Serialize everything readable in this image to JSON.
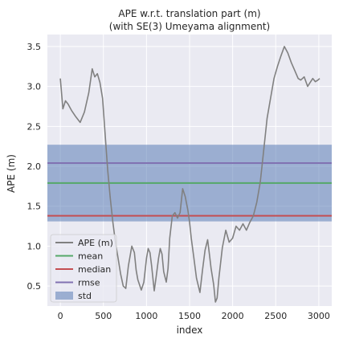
{
  "chart_data": {
    "type": "line",
    "title_line1": "APE w.r.t. translation part (m)",
    "title_line2": "(with SE(3) Umeyama alignment)",
    "xlabel": "index",
    "ylabel": "APE (m)",
    "xlim": [
      -150,
      3150
    ],
    "ylim": [
      0.25,
      3.65
    ],
    "xticks": [
      0,
      500,
      1000,
      1500,
      2000,
      2500,
      3000
    ],
    "xtick_labels": [
      "0",
      "500",
      "1000",
      "1500",
      "2000",
      "2500",
      "3000"
    ],
    "yticks": [
      0.5,
      1.0,
      1.5,
      2.0,
      2.5,
      3.0,
      3.5
    ],
    "ytick_labels": [
      "0.5",
      "1.0",
      "1.5",
      "2.0",
      "2.5",
      "3.0",
      "3.5"
    ],
    "grid": true,
    "legend_position": "lower-left",
    "stats": {
      "mean": 1.79,
      "median": 1.38,
      "rmse": 2.04,
      "std_low": 1.31,
      "std_high": 2.27
    },
    "series": [
      {
        "name": "APE (m)",
        "color": "#808080",
        "x": [
          0,
          30,
          60,
          90,
          130,
          180,
          230,
          280,
          330,
          370,
          400,
          430,
          460,
          490,
          520,
          550,
          580,
          610,
          640,
          670,
          700,
          730,
          760,
          790,
          830,
          860,
          880,
          900,
          940,
          970,
          1000,
          1020,
          1040,
          1060,
          1090,
          1110,
          1140,
          1160,
          1180,
          1200,
          1230,
          1250,
          1270,
          1300,
          1330,
          1360,
          1390,
          1420,
          1450,
          1480,
          1500,
          1520,
          1550,
          1580,
          1620,
          1650,
          1680,
          1710,
          1730,
          1750,
          1780,
          1800,
          1820,
          1840,
          1880,
          1920,
          1960,
          2000,
          2040,
          2080,
          2120,
          2160,
          2200,
          2240,
          2280,
          2320,
          2360,
          2400,
          2440,
          2480,
          2520,
          2560,
          2600,
          2640,
          2680,
          2720,
          2760,
          2790,
          2830,
          2870,
          2900,
          2930,
          2960,
          2990,
          3010
        ],
        "y": [
          3.1,
          2.72,
          2.82,
          2.78,
          2.7,
          2.62,
          2.55,
          2.68,
          2.92,
          3.22,
          3.12,
          3.16,
          3.05,
          2.85,
          2.4,
          1.95,
          1.6,
          1.3,
          1.05,
          0.85,
          0.65,
          0.5,
          0.47,
          0.75,
          1.0,
          0.92,
          0.7,
          0.58,
          0.45,
          0.55,
          0.85,
          0.97,
          0.92,
          0.75,
          0.44,
          0.6,
          0.85,
          0.97,
          0.9,
          0.68,
          0.55,
          0.72,
          1.1,
          1.38,
          1.42,
          1.35,
          1.42,
          1.72,
          1.62,
          1.45,
          1.3,
          1.1,
          0.85,
          0.6,
          0.42,
          0.7,
          0.95,
          1.08,
          0.9,
          0.72,
          0.52,
          0.3,
          0.35,
          0.6,
          0.98,
          1.2,
          1.05,
          1.1,
          1.25,
          1.2,
          1.28,
          1.2,
          1.3,
          1.38,
          1.55,
          1.8,
          2.2,
          2.6,
          2.85,
          3.1,
          3.25,
          3.38,
          3.5,
          3.42,
          3.3,
          3.2,
          3.1,
          3.08,
          3.12,
          3.0,
          3.05,
          3.1,
          3.06,
          3.08,
          3.1
        ]
      }
    ],
    "legend": [
      {
        "label": "APE (m)",
        "kind": "line",
        "color": "#808080"
      },
      {
        "label": "mean",
        "kind": "line",
        "color": "#55a868"
      },
      {
        "label": "median",
        "kind": "line",
        "color": "#c44e52"
      },
      {
        "label": "rmse",
        "kind": "line",
        "color": "#8172b2"
      },
      {
        "label": "std",
        "kind": "patch",
        "color": "#4c72b0"
      }
    ],
    "colors": {
      "background": "#eaeaf2",
      "grid": "#ffffff",
      "ape": "#808080",
      "mean": "#55a868",
      "median": "#c44e52",
      "rmse": "#8172b2",
      "std": "#4c72b0"
    }
  }
}
